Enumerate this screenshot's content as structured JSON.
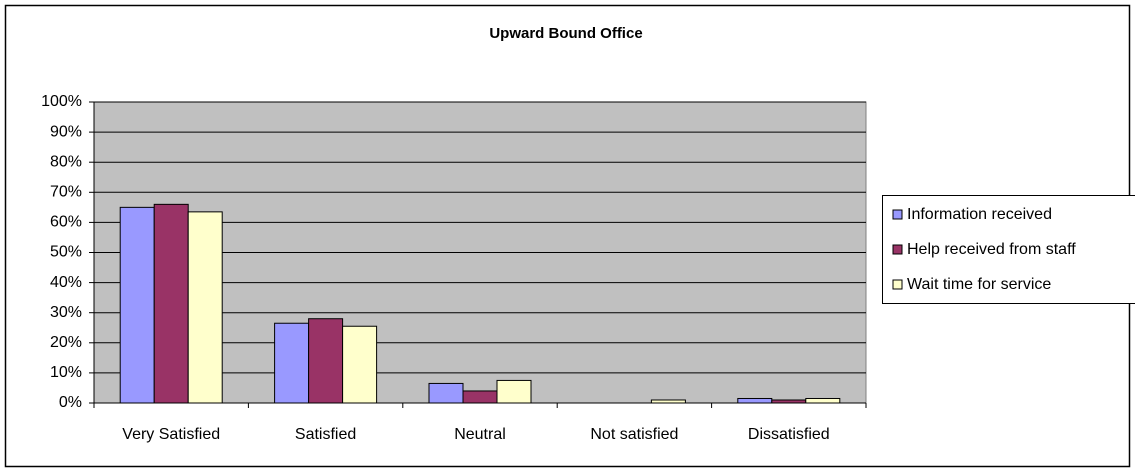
{
  "chart_data": {
    "type": "bar",
    "title": "Upward Bound Office",
    "categories": [
      "Very Satisfied",
      "Satisfied",
      "Neutral",
      "Not satisfied",
      "Dissatisfied"
    ],
    "series": [
      {
        "name": "Information received",
        "color": "#9999ff",
        "values": [
          65,
          26.5,
          6.5,
          0,
          1.5
        ]
      },
      {
        "name": "Help received from staff",
        "color": "#993366",
        "values": [
          66,
          28,
          4,
          0,
          1
        ]
      },
      {
        "name": "Wait time for service",
        "color": "#ffffcc",
        "values": [
          63.5,
          25.5,
          7.5,
          1,
          1.5
        ]
      }
    ],
    "ylim": [
      0,
      100
    ],
    "yticks": [
      {
        "value": 0,
        "label": "0%"
      },
      {
        "value": 10,
        "label": "10%"
      },
      {
        "value": 20,
        "label": "20%"
      },
      {
        "value": 30,
        "label": "30%"
      },
      {
        "value": 40,
        "label": "40%"
      },
      {
        "value": 50,
        "label": "50%"
      },
      {
        "value": 60,
        "label": "60%"
      },
      {
        "value": 70,
        "label": "70%"
      },
      {
        "value": 80,
        "label": "80%"
      },
      {
        "value": 90,
        "label": "90%"
      },
      {
        "value": 100,
        "label": "100%"
      }
    ],
    "grid": true,
    "legend": "right"
  }
}
